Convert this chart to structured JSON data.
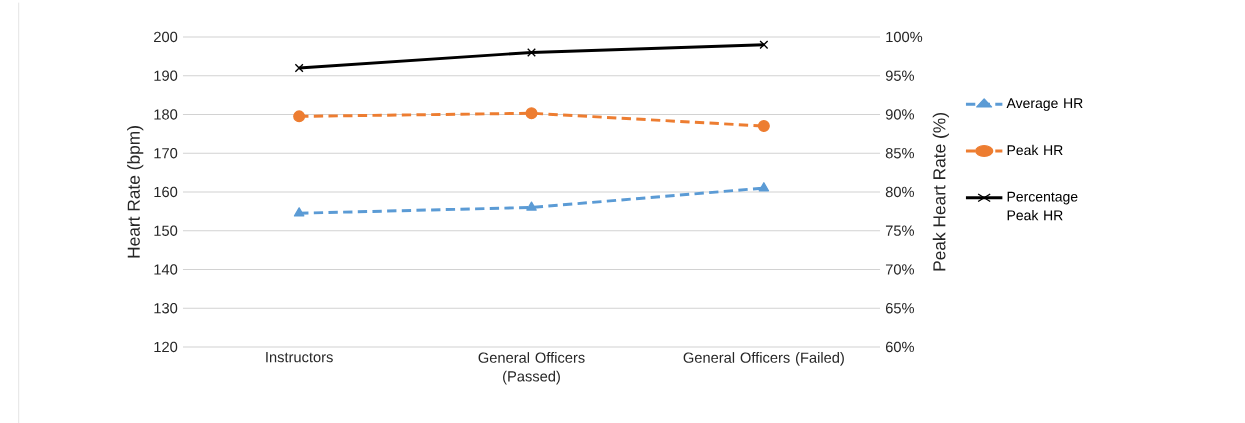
{
  "chart_data": {
    "type": "line",
    "categories": [
      "Instructors",
      "General Officers (Passed)",
      "General Officers (Failed)"
    ],
    "series": [
      {
        "name": "Average HR",
        "color": "#5b9bd5",
        "values": [
          154.5,
          156,
          161
        ],
        "marker": "triangle",
        "line_style": "dashed"
      },
      {
        "name": "Peak HR",
        "color": "#ed7d31",
        "values": [
          179.5,
          180.3,
          177
        ],
        "marker": "circle",
        "line_style": "dashed"
      },
      {
        "name": "Percentage Peak HR",
        "color": "#000000",
        "values": [
          96,
          98,
          99
        ],
        "marker": "cross",
        "line_style": "solid",
        "axis": "y2"
      }
    ],
    "ylabel": "Heart Rate (bpm)",
    "y2label": "Peak Heart Rate (%)",
    "ylim": [
      120,
      200
    ],
    "yticks": [
      120,
      130,
      140,
      150,
      160,
      170,
      180,
      190,
      200
    ],
    "y2lim": [
      60,
      100
    ],
    "y2ticks": [
      {
        "value": 60,
        "label": "60%"
      },
      {
        "value": 65,
        "label": "65%"
      },
      {
        "value": 70,
        "label": "70%"
      },
      {
        "value": 75,
        "label": "75%"
      },
      {
        "value": 80,
        "label": "80%"
      },
      {
        "value": 85,
        "label": "85%"
      },
      {
        "value": 90,
        "label": "90%"
      },
      {
        "value": 95,
        "label": "95%"
      },
      {
        "value": 100,
        "label": "100%"
      }
    ],
    "grid": "y",
    "legend": "right"
  }
}
